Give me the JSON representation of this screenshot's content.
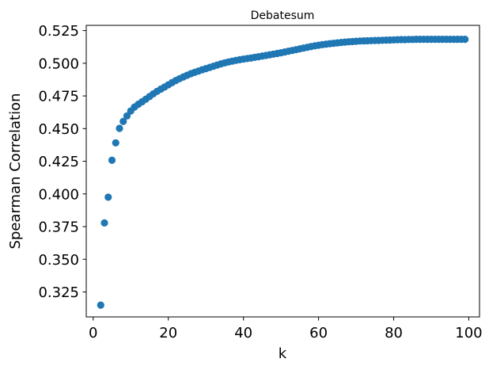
{
  "chart_data": {
    "type": "scatter",
    "title": "Debatesum",
    "xlabel": "k",
    "ylabel": "Spearman Correlation",
    "xlim": [
      -1.85,
      102.85
    ],
    "ylim": [
      0.3059,
      0.529
    ],
    "xticks": [
      0,
      20,
      40,
      60,
      80,
      100
    ],
    "xtick_labels": [
      "0",
      "20",
      "40",
      "60",
      "80",
      "100"
    ],
    "yticks": [
      0.325,
      0.35,
      0.375,
      0.4,
      0.425,
      0.45,
      0.475,
      0.5,
      0.525
    ],
    "ytick_labels": [
      "0.325",
      "0.350",
      "0.375",
      "0.400",
      "0.425",
      "0.450",
      "0.475",
      "0.500",
      "0.525"
    ],
    "grid": false,
    "legend": "none",
    "marker_color": "#1f77b4",
    "series": [
      {
        "x": [
          2,
          3,
          4,
          5,
          6,
          7,
          8,
          9,
          10,
          11,
          12,
          13,
          14,
          15,
          16,
          17,
          18,
          19,
          20,
          21,
          22,
          23,
          24,
          25,
          26,
          27,
          28,
          29,
          30,
          31,
          32,
          33,
          34,
          35,
          36,
          37,
          38,
          39,
          40,
          41,
          42,
          43,
          44,
          45,
          46,
          47,
          48,
          49,
          50,
          51,
          52,
          53,
          54,
          55,
          56,
          57,
          58,
          59,
          60,
          61,
          62,
          63,
          64,
          65,
          66,
          67,
          68,
          69,
          70,
          71,
          72,
          73,
          74,
          75,
          76,
          77,
          78,
          79,
          80,
          81,
          82,
          83,
          84,
          85,
          86,
          87,
          88,
          89,
          90,
          91,
          92,
          93,
          94,
          95,
          96,
          97,
          98,
          99
        ],
        "y": [
          0.3149,
          0.3778,
          0.3975,
          0.4258,
          0.4391,
          0.4502,
          0.4555,
          0.4597,
          0.4635,
          0.4665,
          0.4686,
          0.4705,
          0.4725,
          0.4745,
          0.4766,
          0.4785,
          0.4802,
          0.4818,
          0.4835,
          0.4852,
          0.4868,
          0.4882,
          0.4895,
          0.4908,
          0.492,
          0.493,
          0.494,
          0.495,
          0.4959,
          0.4968,
          0.4977,
          0.4986,
          0.4995,
          0.5003,
          0.501,
          0.5016,
          0.5022,
          0.5027,
          0.5032,
          0.5036,
          0.504,
          0.5045,
          0.505,
          0.5055,
          0.506,
          0.5065,
          0.507,
          0.5075,
          0.508,
          0.5086,
          0.5092,
          0.5098,
          0.5104,
          0.511,
          0.5116,
          0.5122,
          0.5128,
          0.5133,
          0.5138,
          0.5142,
          0.5146,
          0.515,
          0.5153,
          0.5156,
          0.5159,
          0.5162,
          0.5164,
          0.5166,
          0.5168,
          0.517,
          0.5171,
          0.5172,
          0.5173,
          0.5174,
          0.5175,
          0.5176,
          0.5177,
          0.5178,
          0.5179,
          0.518,
          0.5181,
          0.5181,
          0.5182,
          0.5182,
          0.5183,
          0.5183,
          0.5183,
          0.5183,
          0.5183,
          0.5183,
          0.5183,
          0.5183,
          0.5183,
          0.5183,
          0.5183,
          0.5183,
          0.5183,
          0.5183
        ]
      }
    ]
  }
}
